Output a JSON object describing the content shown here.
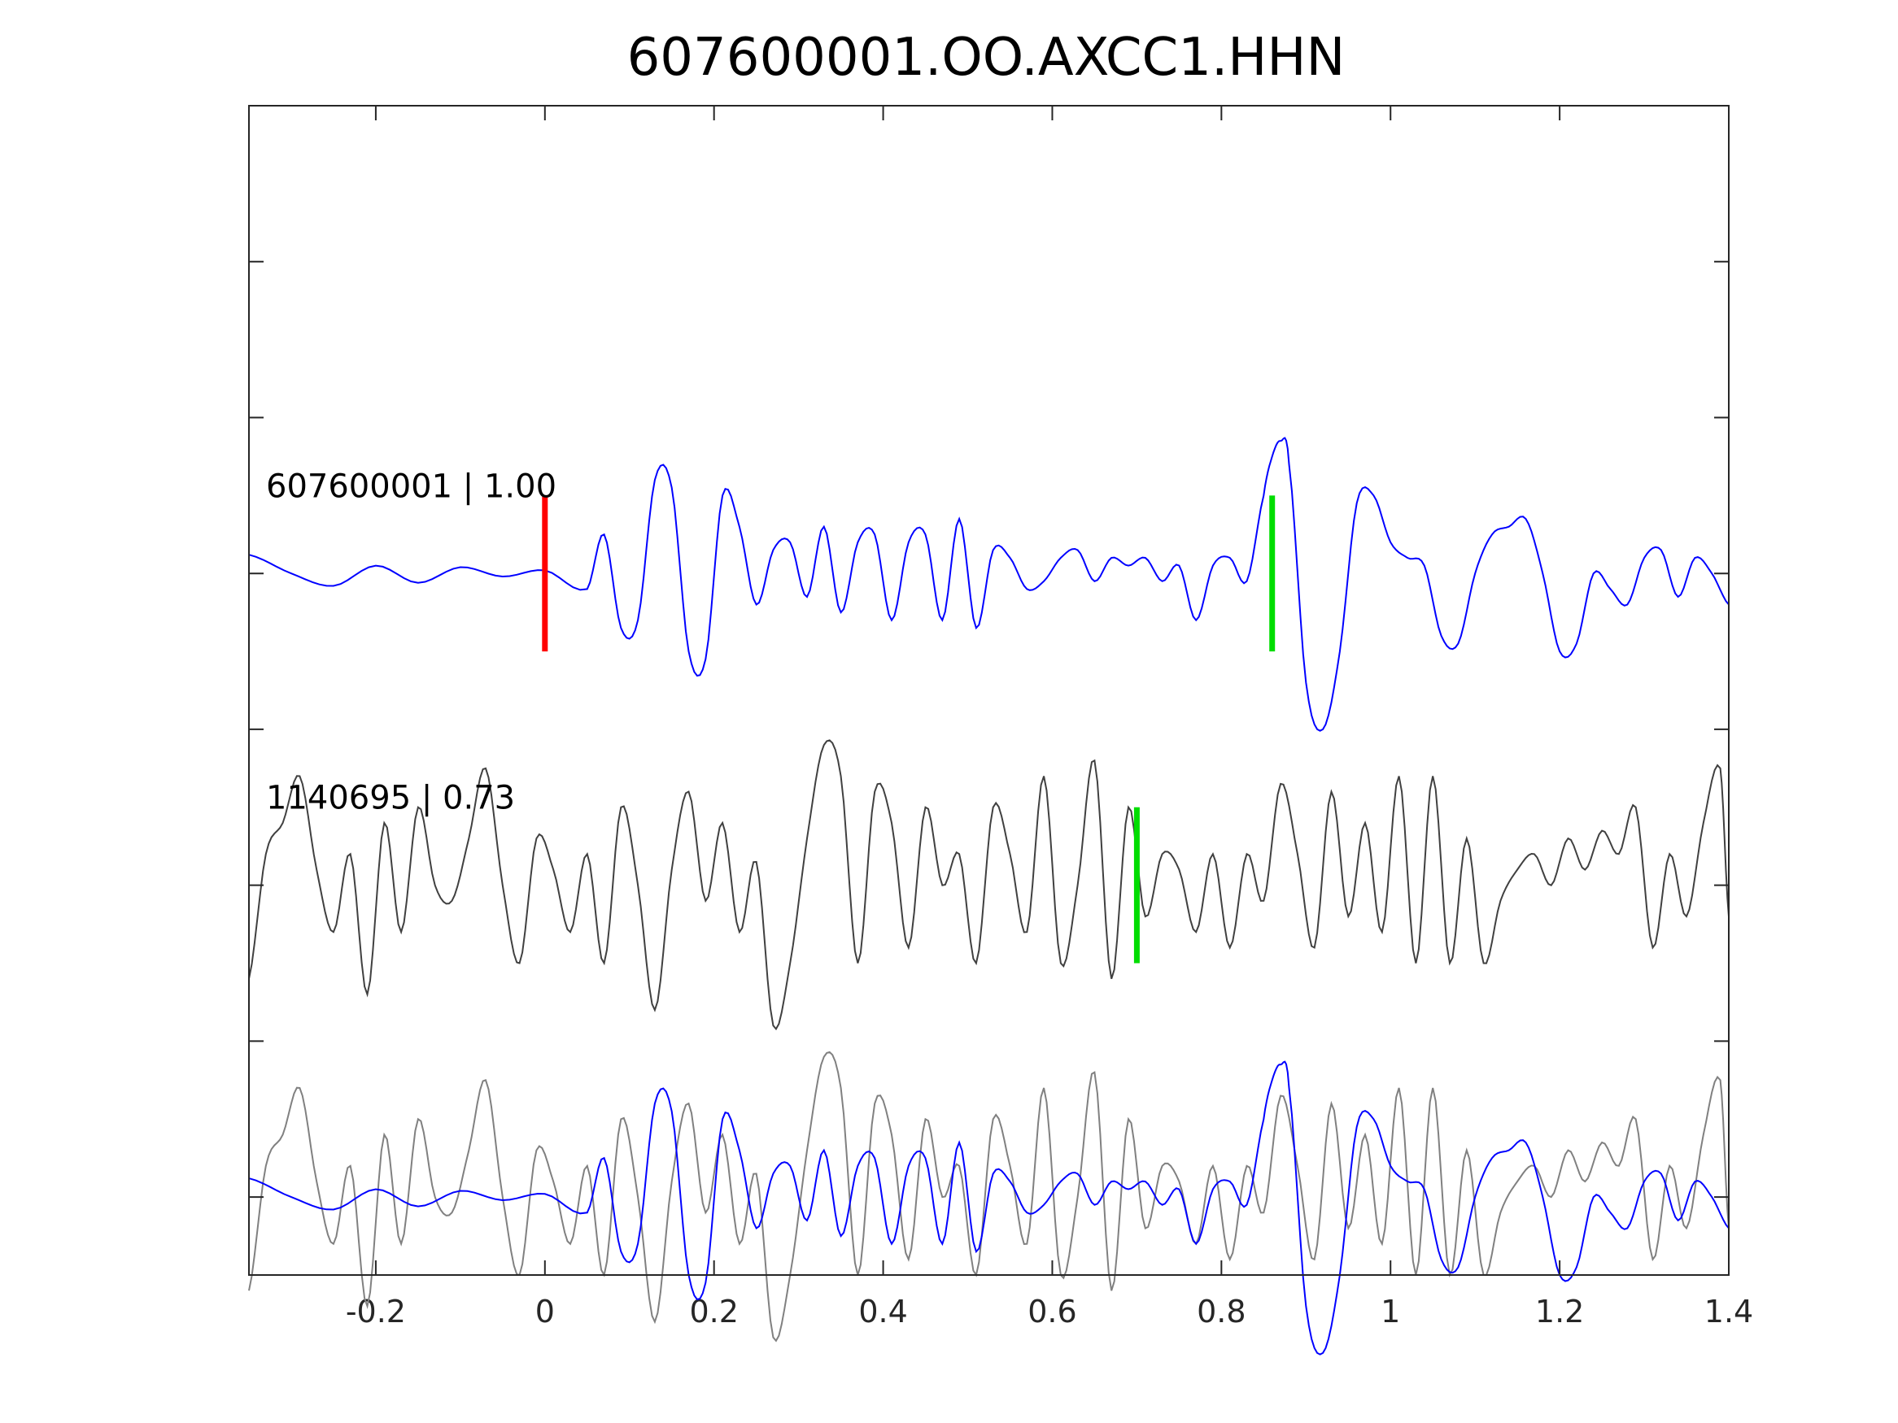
{
  "chart_data": {
    "type": "line",
    "title": "607600001.OO.AXCC1.HHN",
    "xlabel": "",
    "ylabel": "",
    "xlim": [
      -0.35,
      1.4
    ],
    "x_ticks": [
      -0.2,
      0,
      0.2,
      0.4,
      0.6,
      0.8,
      1,
      1.2,
      1.4
    ],
    "x_tick_labels": [
      "-0.2",
      "0",
      "0.2",
      "0.4",
      "0.6",
      "0.8",
      "1",
      "1.2",
      "1.4"
    ],
    "y_ticks": [
      6,
      5,
      4,
      3,
      2,
      1,
      0
    ],
    "y_tick_labels": [],
    "ylim": [
      -0.5,
      7
    ],
    "grid": false,
    "traces": [
      {
        "label": "607600001 | 1.00",
        "baseline": 4,
        "color": "#0000ff",
        "picks": [
          {
            "x": 0.0,
            "color": "#ff0000"
          },
          {
            "x": 0.86,
            "color": "#00dd00"
          }
        ],
        "x": [
          -0.35,
          -0.3,
          -0.25,
          -0.2,
          -0.15,
          -0.1,
          -0.05,
          0.0,
          0.05,
          0.07,
          0.09,
          0.11,
          0.13,
          0.15,
          0.17,
          0.19,
          0.21,
          0.23,
          0.25,
          0.27,
          0.29,
          0.31,
          0.33,
          0.35,
          0.37,
          0.39,
          0.41,
          0.43,
          0.45,
          0.47,
          0.49,
          0.51,
          0.53,
          0.55,
          0.57,
          0.59,
          0.61,
          0.63,
          0.65,
          0.67,
          0.69,
          0.71,
          0.73,
          0.75,
          0.77,
          0.79,
          0.81,
          0.83,
          0.85,
          0.86,
          0.87,
          0.88,
          0.9,
          0.92,
          0.94,
          0.96,
          0.98,
          1.0,
          1.02,
          1.04,
          1.06,
          1.08,
          1.1,
          1.12,
          1.14,
          1.16,
          1.18,
          1.2,
          1.22,
          1.24,
          1.26,
          1.28,
          1.3,
          1.32,
          1.34,
          1.36,
          1.38,
          1.4
        ],
        "y": [
          0.12,
          0.0,
          -0.08,
          0.05,
          -0.06,
          0.04,
          -0.02,
          0.02,
          -0.1,
          0.25,
          -0.35,
          -0.3,
          0.6,
          0.55,
          -0.5,
          -0.55,
          0.5,
          0.3,
          -0.2,
          0.15,
          0.2,
          -0.15,
          0.3,
          -0.25,
          0.2,
          0.25,
          -0.3,
          0.2,
          0.25,
          -0.3,
          0.35,
          -0.35,
          0.15,
          0.1,
          -0.1,
          -0.05,
          0.1,
          0.15,
          -0.05,
          0.1,
          0.05,
          0.1,
          -0.05,
          0.05,
          -0.3,
          0.05,
          0.1,
          -0.05,
          0.5,
          0.75,
          0.85,
          0.7,
          -0.7,
          -1.0,
          -0.5,
          0.45,
          0.5,
          0.2,
          0.1,
          0.05,
          -0.4,
          -0.45,
          0.0,
          0.25,
          0.3,
          0.35,
          0.0,
          -0.5,
          -0.45,
          0.0,
          -0.1,
          -0.2,
          0.1,
          0.15,
          -0.15,
          0.1,
          0.0,
          -0.2
        ]
      },
      {
        "label": "1140695 | 0.73",
        "baseline": 2,
        "color": "#404040",
        "picks": [
          {
            "x": 0.7,
            "color": "#00dd00"
          }
        ],
        "x": [
          -0.35,
          -0.33,
          -0.31,
          -0.29,
          -0.27,
          -0.25,
          -0.23,
          -0.21,
          -0.19,
          -0.17,
          -0.15,
          -0.13,
          -0.11,
          -0.09,
          -0.07,
          -0.05,
          -0.03,
          -0.01,
          0.01,
          0.03,
          0.05,
          0.07,
          0.09,
          0.11,
          0.13,
          0.15,
          0.17,
          0.19,
          0.21,
          0.23,
          0.25,
          0.27,
          0.29,
          0.31,
          0.33,
          0.35,
          0.37,
          0.39,
          0.41,
          0.43,
          0.45,
          0.47,
          0.49,
          0.51,
          0.53,
          0.55,
          0.57,
          0.59,
          0.61,
          0.63,
          0.65,
          0.67,
          0.69,
          0.71,
          0.73,
          0.75,
          0.77,
          0.79,
          0.81,
          0.83,
          0.85,
          0.87,
          0.89,
          0.91,
          0.93,
          0.95,
          0.97,
          0.99,
          1.01,
          1.03,
          1.05,
          1.07,
          1.09,
          1.11,
          1.13,
          1.15,
          1.17,
          1.19,
          1.21,
          1.23,
          1.25,
          1.27,
          1.29,
          1.31,
          1.33,
          1.35,
          1.37,
          1.39,
          1.4
        ],
        "y": [
          -0.6,
          0.2,
          0.4,
          0.7,
          0.1,
          -0.3,
          0.2,
          -0.7,
          0.4,
          -0.3,
          0.5,
          0.0,
          -0.1,
          0.3,
          0.75,
          0.0,
          -0.5,
          0.3,
          0.1,
          -0.3,
          0.2,
          -0.5,
          0.5,
          0.0,
          -0.8,
          0.1,
          0.6,
          -0.1,
          0.4,
          -0.3,
          0.15,
          -0.9,
          -0.5,
          0.3,
          0.9,
          0.7,
          -0.5,
          0.6,
          0.4,
          -0.4,
          0.5,
          0.0,
          0.2,
          -0.5,
          0.5,
          0.2,
          -0.3,
          0.7,
          -0.5,
          0.0,
          0.8,
          -0.6,
          0.5,
          -0.2,
          0.2,
          0.1,
          -0.3,
          0.2,
          -0.4,
          0.2,
          -0.1,
          0.65,
          0.2,
          -0.4,
          0.6,
          -0.2,
          0.4,
          -0.3,
          0.7,
          -0.5,
          0.7,
          -0.5,
          0.3,
          -0.5,
          -0.1,
          0.1,
          0.2,
          0.0,
          0.3,
          0.1,
          0.35,
          0.2,
          0.5,
          -0.4,
          0.2,
          -0.2,
          0.4,
          0.75,
          -0.2
        ]
      }
    ],
    "overlay": {
      "baseline": 0,
      "series_colors": [
        "#0000ff",
        "#808080"
      ]
    }
  }
}
